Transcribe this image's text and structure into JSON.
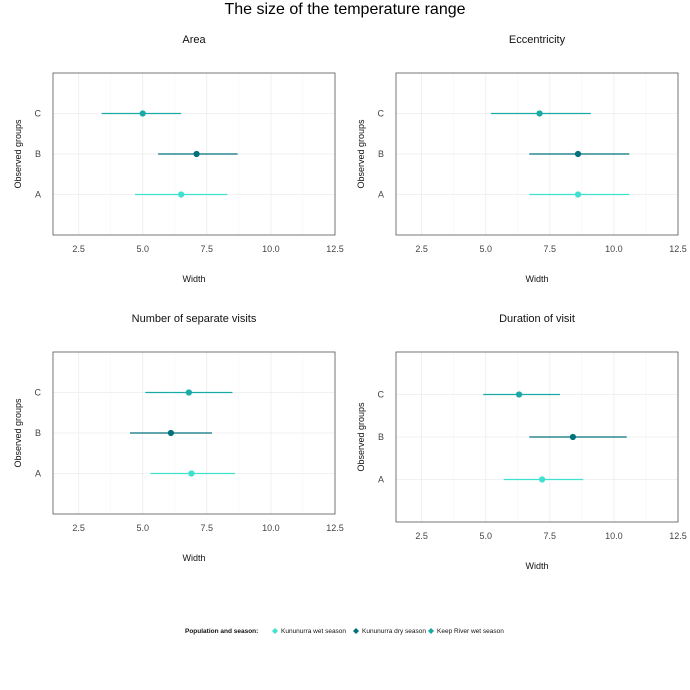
{
  "title": "The size of the temperature range",
  "legend": {
    "title": "Population and season:",
    "items": [
      {
        "label": "Kununurra wet season",
        "color": "#40e0d0"
      },
      {
        "label": "Kununurra dry season",
        "color": "#00727a"
      },
      {
        "label": "Keep River wet season",
        "color": "#1aaaa6"
      }
    ]
  },
  "chart_data": [
    {
      "type": "errorbar",
      "title": "Area",
      "xlabel": "Width",
      "ylabel": "Observed groups",
      "xlim": [
        1.5,
        12.5
      ],
      "xticks": [
        "2.5",
        "5.0",
        "7.5",
        "10.0",
        "12.5"
      ],
      "categories": [
        "A",
        "B",
        "C"
      ],
      "points": [
        {
          "group": "A",
          "series": "Kununurra wet season",
          "x": 6.5,
          "low": 4.7,
          "high": 8.3
        },
        {
          "group": "B",
          "series": "Kununurra dry season",
          "x": 7.1,
          "low": 5.6,
          "high": 8.7
        },
        {
          "group": "C",
          "series": "Keep River wet season",
          "x": 5.0,
          "low": 3.4,
          "high": 6.5
        }
      ]
    },
    {
      "type": "errorbar",
      "title": "Eccentricity",
      "xlabel": "Width",
      "ylabel": "Observed groups",
      "xlim": [
        1.5,
        12.5
      ],
      "xticks": [
        "2.5",
        "5.0",
        "7.5",
        "10.0",
        "12.5"
      ],
      "categories": [
        "A",
        "B",
        "C"
      ],
      "points": [
        {
          "group": "A",
          "series": "Kununurra wet season",
          "x": 8.6,
          "low": 6.7,
          "high": 10.6
        },
        {
          "group": "B",
          "series": "Kununurra dry season",
          "x": 8.6,
          "low": 6.7,
          "high": 10.6
        },
        {
          "group": "C",
          "series": "Keep River wet season",
          "x": 7.1,
          "low": 5.2,
          "high": 9.1
        }
      ]
    },
    {
      "type": "errorbar",
      "title": "Number of separate visits",
      "xlabel": "Width",
      "ylabel": "Observed groups",
      "xlim": [
        1.5,
        12.5
      ],
      "xticks": [
        "2.5",
        "5.0",
        "7.5",
        "10.0",
        "12.5"
      ],
      "categories": [
        "A",
        "B",
        "C"
      ],
      "points": [
        {
          "group": "A",
          "series": "Kununurra wet season",
          "x": 6.9,
          "low": 5.3,
          "high": 8.6
        },
        {
          "group": "B",
          "series": "Kununurra dry season",
          "x": 6.1,
          "low": 4.5,
          "high": 7.7
        },
        {
          "group": "C",
          "series": "Keep River wet season",
          "x": 6.8,
          "low": 5.1,
          "high": 8.5
        }
      ]
    },
    {
      "type": "errorbar",
      "title": "Duration of visit",
      "xlabel": "Width",
      "ylabel": "Observed groups",
      "xlim": [
        1.5,
        12.5
      ],
      "xticks": [
        "2.5",
        "5.0",
        "7.5",
        "10.0",
        "12.5"
      ],
      "categories": [
        "A",
        "B",
        "C"
      ],
      "points": [
        {
          "group": "A",
          "series": "Kununurra wet season",
          "x": 7.2,
          "low": 5.7,
          "high": 8.8
        },
        {
          "group": "B",
          "series": "Kununurra dry season",
          "x": 8.4,
          "low": 6.7,
          "high": 10.5
        },
        {
          "group": "C",
          "series": "Keep River wet season",
          "x": 6.3,
          "low": 4.9,
          "high": 7.9
        }
      ]
    }
  ]
}
